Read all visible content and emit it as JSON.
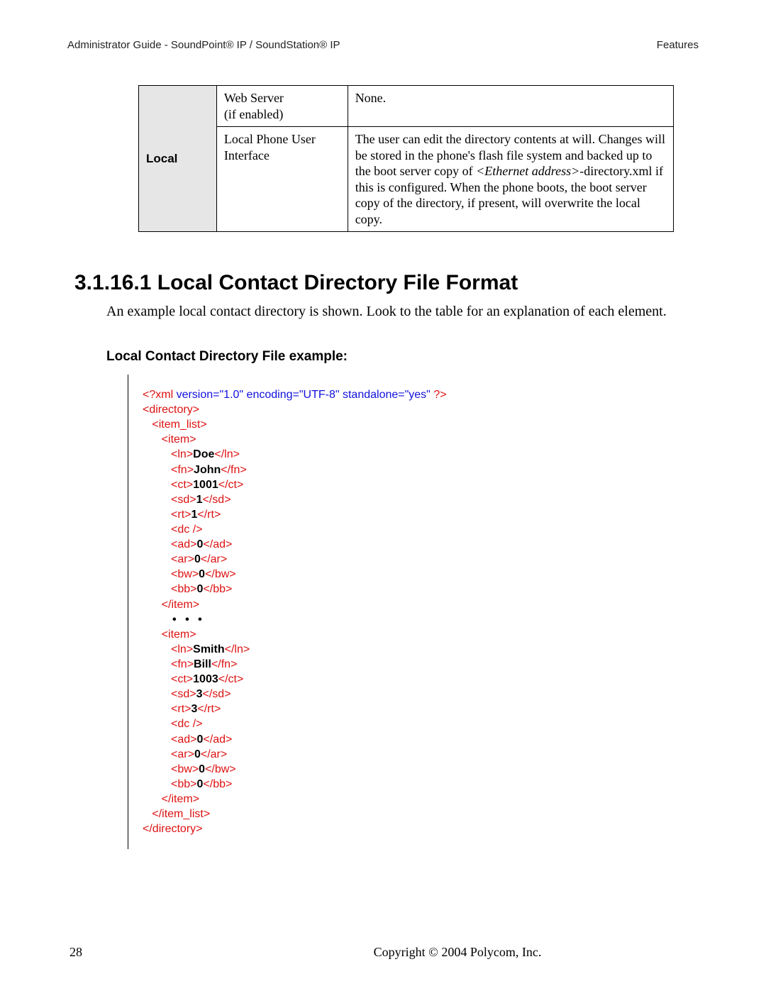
{
  "header": {
    "left": "Administrator Guide - SoundPoint® IP / SoundStation® IP",
    "right": "Features"
  },
  "table": {
    "side_label": "Local",
    "rows": [
      {
        "c2a": "Web Server",
        "c2b": "(if enabled)",
        "c3a": "None."
      },
      {
        "c2a": "Local Phone User",
        "c2b": "Interface",
        "c3a": "The user can edit the directory contents at will.  Changes will be stored in the phone's flash file system and backed up to the boot server copy of ",
        "c3i": "<Ethernet address>",
        "c3b": "-directory.xml if this is configured.  When the phone boots, the boot server copy of the directory, if present, will overwrite the local copy."
      }
    ]
  },
  "section": {
    "num_title": "3.1.16.1  Local Contact Directory File Format",
    "para": "An example local contact directory is shown.  Look to the table for an explanation of each element.",
    "subtitle": "Local Contact Directory File example:"
  },
  "xml": {
    "decl_a": "<?xml ",
    "decl_b": "version=\"1.0\" encoding=\"UTF-8\" standalone=\"yes\" ",
    "decl_c": "?>",
    "dir_open": "<directory>",
    "il_open": "<item_list>",
    "item_open": "<item>",
    "ln_o": "<ln>",
    "ln_c": "</ln>",
    "fn_o": "<fn>",
    "fn_c": "</fn>",
    "ct_o": "<ct>",
    "ct_c": "</ct>",
    "sd_o": "<sd>",
    "sd_c": "</sd>",
    "rt_o": "<rt>",
    "rt_c": "</rt>",
    "dc": "<dc />",
    "ad_o": "<ad>",
    "ad_c": "</ad>",
    "ar_o": "<ar>",
    "ar_c": "</ar>",
    "bw_o": "<bw>",
    "bw_c": "</bw>",
    "bb_o": "<bb>",
    "bb_c": "</bb>",
    "item_close": "</item>",
    "dots": "• • •",
    "il_close": "</item_list>",
    "dir_close": "</directory>",
    "entry1": {
      "ln": "Doe",
      "fn": "John",
      "ct": "1001",
      "sd": "1",
      "rt": "1",
      "ad": "0",
      "ar": "0",
      "bw": "0",
      "bb": "0"
    },
    "entry2": {
      "ln": "Smith",
      "fn": "Bill",
      "ct": "1003",
      "sd": "3",
      "rt": "3",
      "ad": "0",
      "ar": "0",
      "bw": "0",
      "bb": "0"
    }
  },
  "footer": {
    "page": "28",
    "copyright": "Copyright © 2004 Polycom, Inc."
  }
}
